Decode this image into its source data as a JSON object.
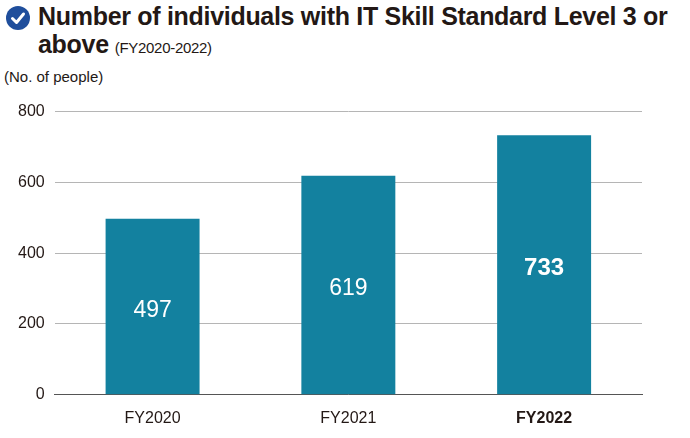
{
  "chart_data": {
    "type": "bar",
    "title": "Number of individuals with IT Skill Standard Level 3 or above",
    "subtitle": "(FY2020-2022)",
    "y_label": "(No. of people)",
    "categories": [
      "FY2020",
      "FY2021",
      "FY2022"
    ],
    "values": [
      497,
      619,
      733
    ],
    "color": "#13819f",
    "ylim": [
      0,
      800
    ],
    "yticks": [
      0,
      200,
      400,
      600,
      800
    ],
    "grid": true,
    "data_labels": true
  }
}
